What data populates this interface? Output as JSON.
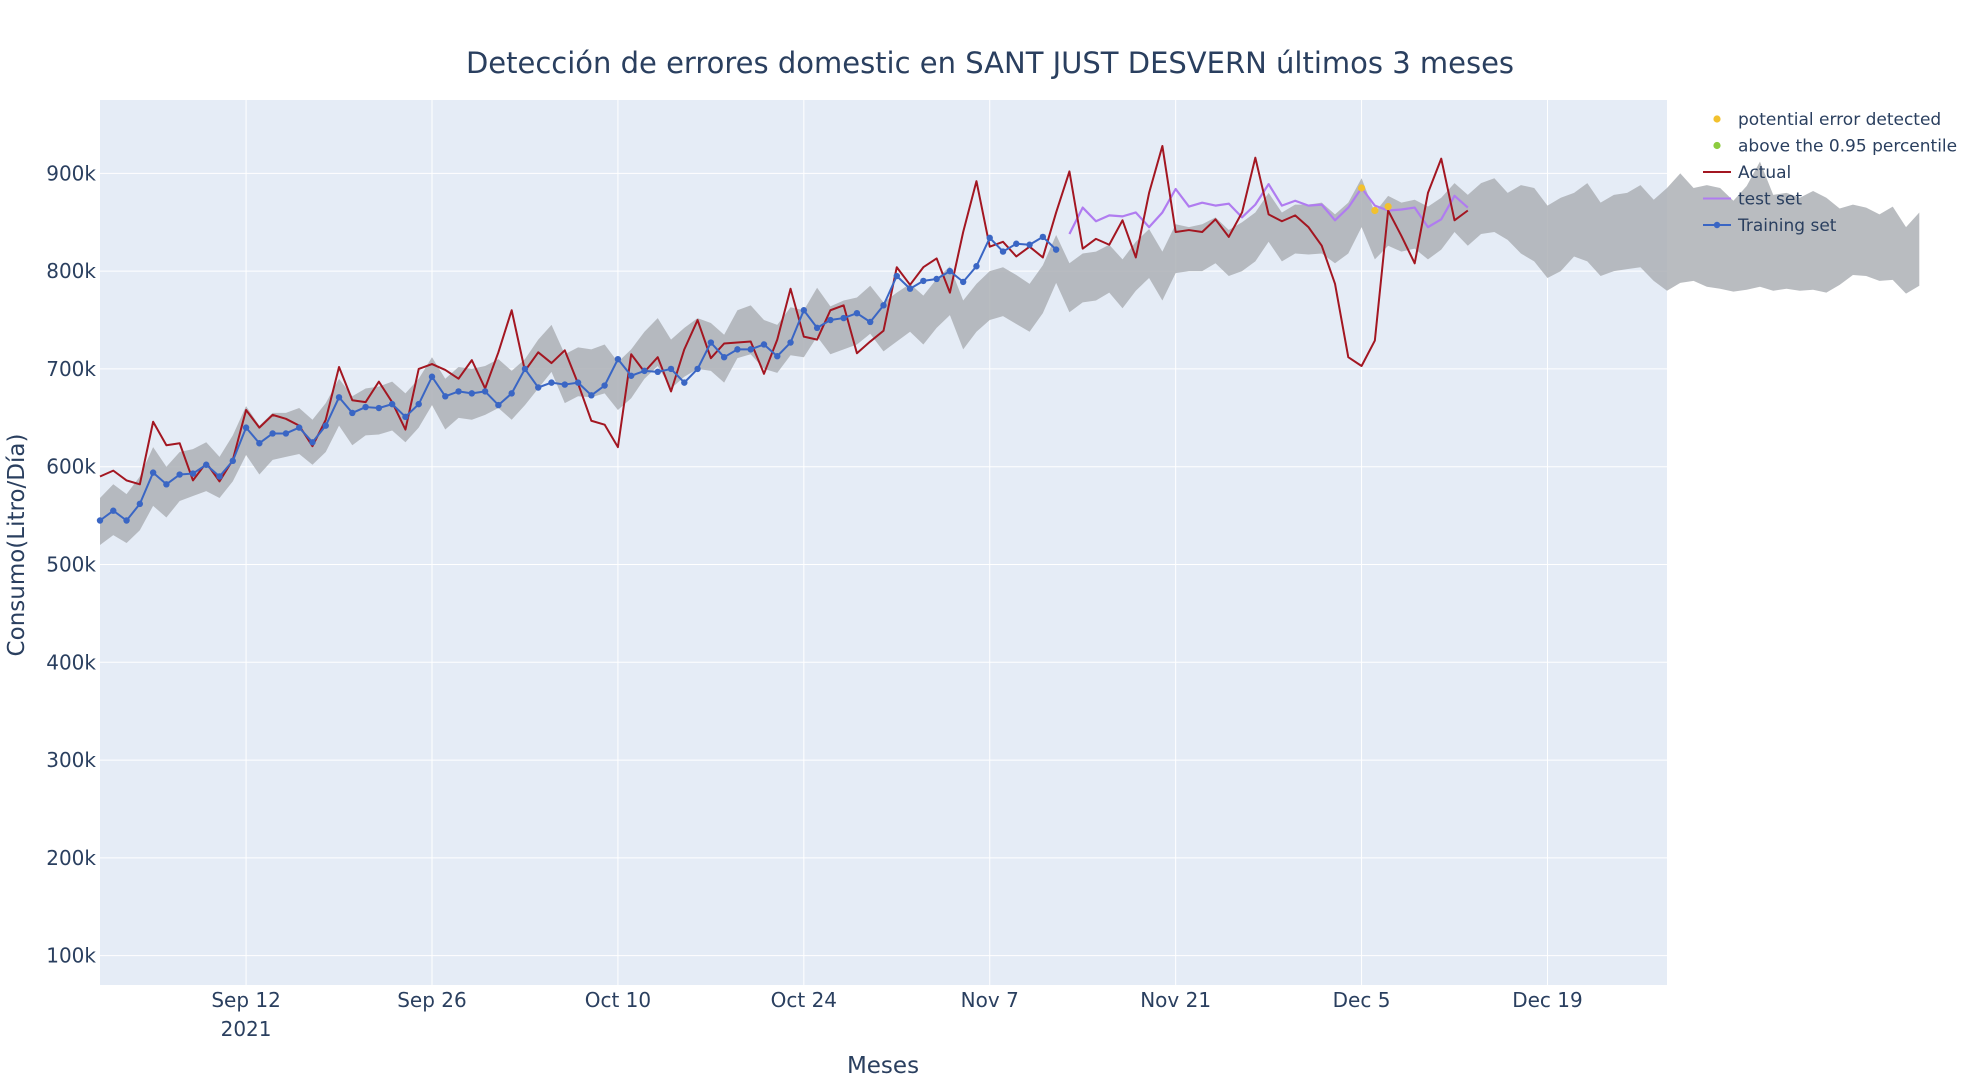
{
  "chart_data": {
    "type": "line",
    "title": "Detección de errores domestic en SANT JUST DESVERN últimos 3 meses",
    "xlabel": "Meses",
    "ylabel": "Consumo(Litro/Día)",
    "x_range": [
      "2021-09-01",
      "2021-12-28"
    ],
    "ylim": [
      70000,
      975000
    ],
    "y_ticks": [
      100000,
      200000,
      300000,
      400000,
      500000,
      600000,
      700000,
      800000,
      900000
    ],
    "y_tick_labels": [
      "100k",
      "200k",
      "300k",
      "400k",
      "500k",
      "600k",
      "700k",
      "800k",
      "900k"
    ],
    "x_ticks": [
      "2021-09-12",
      "2021-09-26",
      "2021-10-10",
      "2021-10-24",
      "2021-11-07",
      "2021-11-21",
      "2021-12-05",
      "2021-12-19"
    ],
    "x_tick_labels": [
      "Sep 12",
      "Sep 26",
      "Oct 10",
      "Oct 24",
      "Nov 7",
      "Nov 21",
      "Dec 5",
      "Dec 19"
    ],
    "x_tick_year_label": "2021",
    "grid": true,
    "legend_position": "top-right",
    "colors": {
      "plot_bg": "#e5ecf6",
      "grid": "#ffffff",
      "band": "#a9adb2",
      "actual": "#a31621",
      "test": "#b07cf0",
      "training": "#3a66c4",
      "potential_error": "#f2c12e",
      "percentile": "#8dcc3f",
      "text": "#2a3f5f"
    },
    "legend": [
      {
        "key": "potential_error",
        "label": "potential error detected",
        "style": "marker"
      },
      {
        "key": "percentile",
        "label": "above the 0.95 percentile",
        "style": "marker"
      },
      {
        "key": "actual",
        "label": "Actual",
        "style": "line"
      },
      {
        "key": "test",
        "label": "test set",
        "style": "line"
      },
      {
        "key": "training",
        "label": "Training set",
        "style": "line-marker"
      }
    ],
    "band": {
      "start": "2021-09-01",
      "upper": [
        568000,
        582000,
        572000,
        590000,
        620000,
        600000,
        615000,
        618000,
        625000,
        610000,
        632000,
        662000,
        642000,
        655000,
        655000,
        660000,
        648000,
        665000,
        690000,
        672000,
        680000,
        682000,
        687000,
        675000,
        690000,
        712000,
        690000,
        702000,
        700000,
        703000,
        710000,
        698000,
        710000,
        730000,
        745000,
        715000,
        722000,
        720000,
        725000,
        707000,
        720000,
        738000,
        752000,
        730000,
        742000,
        752000,
        747000,
        735000,
        760000,
        765000,
        750000,
        745000,
        763000,
        760000,
        783000,
        764000,
        770000,
        773000,
        785000,
        768000,
        778000,
        787000,
        775000,
        792000,
        805000,
        770000,
        787000,
        800000,
        804000,
        796000,
        787000,
        806000,
        837000,
        808000,
        818000,
        820000,
        827000,
        812000,
        830000,
        843000,
        820000,
        848000,
        845000,
        848000,
        855000,
        842000,
        850000,
        860000,
        880000,
        860000,
        868000,
        868000,
        870000,
        858000,
        870000,
        895000,
        860000,
        877000,
        870000,
        873000,
        866000,
        875000,
        890000,
        878000,
        890000,
        895000,
        880000,
        888000,
        885000,
        867000,
        875000,
        880000,
        890000,
        870000,
        878000,
        880000,
        888000,
        873000,
        885000,
        900000,
        885000,
        888000,
        885000,
        872000,
        887000,
        912000,
        878000,
        880000,
        875000,
        882000,
        875000,
        864000,
        868000,
        865000,
        858000,
        866000,
        845000,
        860000
      ],
      "lower": [
        520000,
        530000,
        522000,
        535000,
        560000,
        548000,
        565000,
        570000,
        575000,
        568000,
        585000,
        612000,
        592000,
        607000,
        610000,
        613000,
        602000,
        615000,
        642000,
        622000,
        632000,
        633000,
        637000,
        625000,
        640000,
        663000,
        638000,
        650000,
        648000,
        653000,
        660000,
        648000,
        663000,
        680000,
        697000,
        665000,
        672000,
        671000,
        675000,
        658000,
        670000,
        690000,
        703000,
        680000,
        692000,
        700000,
        698000,
        686000,
        711000,
        715000,
        700000,
        696000,
        714000,
        712000,
        733000,
        715000,
        720000,
        725000,
        736000,
        718000,
        728000,
        738000,
        725000,
        742000,
        755000,
        720000,
        738000,
        750000,
        754000,
        746000,
        738000,
        757000,
        788000,
        758000,
        768000,
        770000,
        778000,
        762000,
        780000,
        793000,
        770000,
        798000,
        800000,
        800000,
        808000,
        795000,
        800000,
        810000,
        830000,
        810000,
        818000,
        817000,
        818000,
        808000,
        818000,
        845000,
        812000,
        826000,
        820000,
        823000,
        812000,
        822000,
        840000,
        826000,
        838000,
        840000,
        832000,
        818000,
        810000,
        793000,
        800000,
        815000,
        810000,
        795000,
        800000,
        802000,
        804000,
        790000,
        780000,
        788000,
        790000,
        784000,
        782000,
        779000,
        781000,
        784000,
        780000,
        782000,
        780000,
        781000,
        778000,
        786000,
        796000,
        795000,
        790000,
        791000,
        777000,
        785000
      ]
    },
    "series": [
      {
        "name": "Training set",
        "start": "2021-09-01",
        "values": [
          545000,
          555000,
          545000,
          562000,
          594000,
          582000,
          592000,
          593000,
          602000,
          590000,
          606000,
          640000,
          624000,
          634000,
          634000,
          640000,
          625000,
          642000,
          671000,
          655000,
          661000,
          660000,
          664000,
          651000,
          664000,
          692000,
          672000,
          677000,
          675000,
          677000,
          663000,
          675000,
          700000,
          681000,
          686000,
          684000,
          686000,
          673000,
          683000,
          710000,
          693000,
          698000,
          697000,
          700000,
          686000,
          700000,
          727000,
          712000,
          720000,
          720000,
          725000,
          713000,
          727000,
          760000,
          742000,
          750000,
          752000,
          757000,
          748000,
          765000,
          795000,
          782000,
          790000,
          792000,
          800000,
          789000,
          805000,
          834000,
          820000,
          828000,
          827000,
          835000,
          822000
        ],
        "style": "line-marker"
      },
      {
        "name": "test set",
        "start": "2021-11-13",
        "values": [
          838000,
          865000,
          851000,
          857000,
          856000,
          860000,
          845000,
          860000,
          884000,
          866000,
          870000,
          867000,
          869000,
          855000,
          868000,
          889000,
          867000,
          872000,
          867000,
          868000,
          852000,
          865000,
          885000,
          867000,
          862000,
          863000,
          865000,
          845000,
          853000,
          877000,
          865000
        ],
        "style": "line"
      },
      {
        "name": "Actual",
        "start": "2021-09-01",
        "values": [
          590000,
          596000,
          586000,
          582000,
          646000,
          622000,
          624000,
          586000,
          604000,
          585000,
          607000,
          658000,
          640000,
          653000,
          649000,
          642000,
          621000,
          648000,
          702000,
          668000,
          666000,
          687000,
          666000,
          638000,
          700000,
          705000,
          699000,
          690000,
          709000,
          680000,
          717000,
          760000,
          698000,
          717000,
          706000,
          719000,
          685000,
          647000,
          643000,
          620000,
          715000,
          697000,
          712000,
          677000,
          720000,
          750000,
          711000,
          726000,
          727000,
          728000,
          695000,
          730000,
          782000,
          733000,
          730000,
          760000,
          765000,
          716000,
          728000,
          739000,
          804000,
          786000,
          804000,
          813000,
          778000,
          840000,
          892000,
          825000,
          830000,
          815000,
          825000,
          814000,
          860000,
          902000,
          823000,
          833000,
          827000,
          852000,
          814000,
          880000,
          928000,
          840000,
          842000,
          840000,
          853000,
          835000,
          860000,
          916000,
          858000,
          851000,
          857000,
          845000,
          826000,
          787000,
          712000,
          703000,
          729000,
          862000,
          836000,
          808000,
          880000,
          915000,
          852000,
          862000
        ],
        "style": "line"
      }
    ],
    "markers": {
      "potential_error": [
        {
          "x": "2021-12-05",
          "y": 885000
        },
        {
          "x": "2021-12-06",
          "y": 862000
        },
        {
          "x": "2021-12-07",
          "y": 866000
        }
      ],
      "percentile": []
    }
  }
}
